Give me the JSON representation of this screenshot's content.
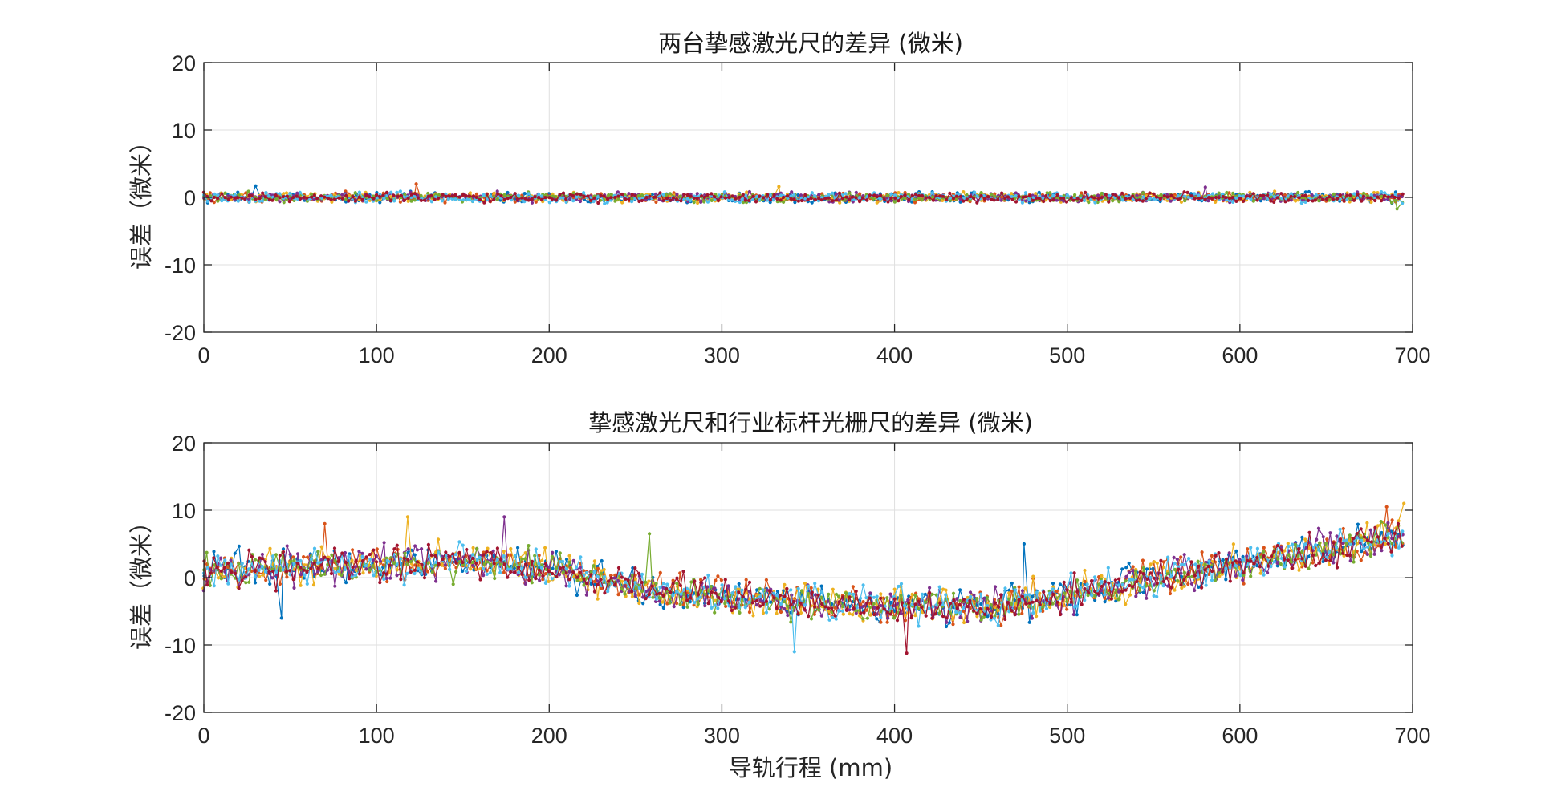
{
  "colors": [
    "#0072BD",
    "#D95319",
    "#EDB120",
    "#7E2F8E",
    "#77AC30",
    "#4DBEEE",
    "#A2142F"
  ],
  "chart_data": [
    {
      "type": "line",
      "title": "两台挚感激光尺的差异 (微米)",
      "xlabel": "",
      "ylabel": "误差（微米）",
      "xlim": [
        0,
        700
      ],
      "ylim": [
        -20,
        20
      ],
      "xticks": [
        0,
        100,
        200,
        300,
        400,
        500,
        600,
        700
      ],
      "yticks": [
        20,
        10,
        0,
        -10,
        -20
      ],
      "grid": true,
      "legend": "none",
      "marker": "dot",
      "x_range": [
        0,
        695
      ],
      "x_step": 2,
      "series_count": 7,
      "trend": {
        "x": [
          0,
          700
        ],
        "y": [
          0,
          0
        ]
      },
      "noise_amplitude": 0.6,
      "notable_points": [
        {
          "x": 30,
          "y": 1.7
        },
        {
          "x": 123,
          "y": 2.0
        },
        {
          "x": 333,
          "y": 1.6
        },
        {
          "x": 580,
          "y": 1.5
        },
        {
          "x": 691,
          "y": -1.7
        }
      ]
    },
    {
      "type": "line",
      "title": "挚感激光尺和行业标杆光栅尺的差异 (微米)",
      "xlabel": "导轨行程 (mm)",
      "ylabel": "误差（微米）",
      "xlim": [
        0,
        700
      ],
      "ylim": [
        -20,
        20
      ],
      "xticks": [
        0,
        100,
        200,
        300,
        400,
        500,
        600,
        700
      ],
      "yticks": [
        20,
        10,
        0,
        -10,
        -20
      ],
      "grid": true,
      "legend": "none",
      "marker": "dot",
      "x_range": [
        0,
        695
      ],
      "x_step": 2,
      "series_count": 7,
      "trend": {
        "x": [
          0,
          50,
          100,
          150,
          200,
          250,
          300,
          350,
          400,
          450,
          500,
          550,
          600,
          650,
          695
        ],
        "y": [
          1.0,
          1.5,
          2.0,
          2.5,
          1.5,
          -1.5,
          -2.8,
          -3.5,
          -4.2,
          -4.5,
          -2.5,
          0.0,
          2.0,
          4.0,
          6.5
        ]
      },
      "noise_amplitude": 2.2,
      "notable_points": [
        {
          "x": 45,
          "y": -6.0
        },
        {
          "x": 70,
          "y": 8.0
        },
        {
          "x": 118,
          "y": 9.0
        },
        {
          "x": 174,
          "y": 9.0
        },
        {
          "x": 258,
          "y": 6.5
        },
        {
          "x": 342,
          "y": -11.0
        },
        {
          "x": 407,
          "y": -11.2
        },
        {
          "x": 475,
          "y": 5.0
        },
        {
          "x": 685,
          "y": 10.5
        },
        {
          "x": 695,
          "y": 11.0
        }
      ]
    }
  ]
}
